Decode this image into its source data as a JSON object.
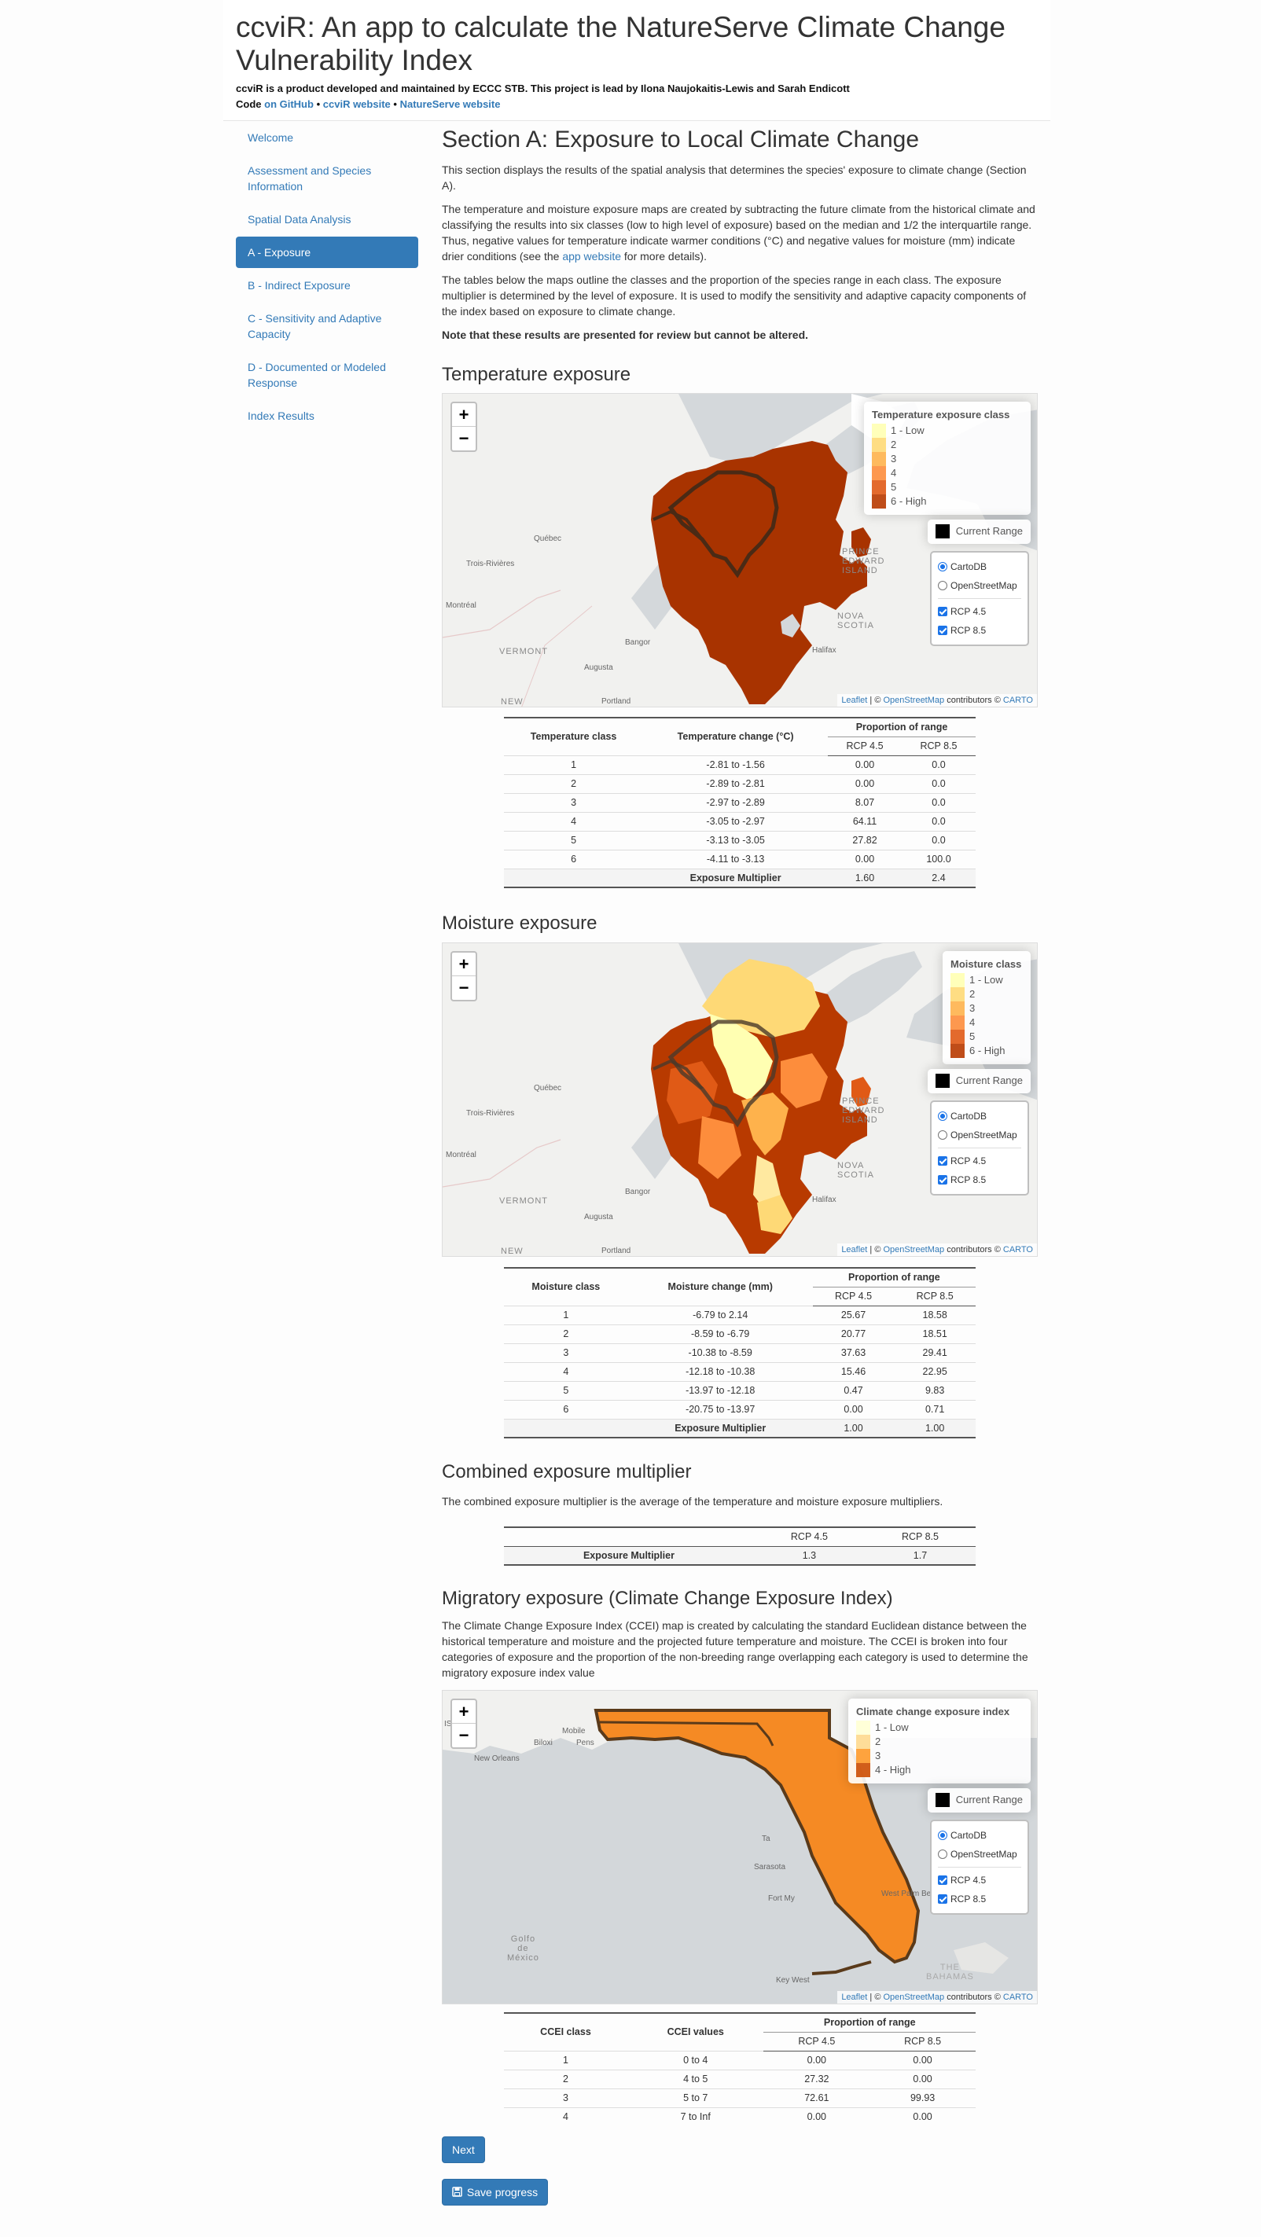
{
  "header": {
    "title_line1": "ccviR: An app to calculate the NatureServe Climate Change",
    "title_line2": "Vulnerability Index",
    "by_text": "ccviR is a product developed and maintained by ECCC STB. This project is lead by Ilona Naujokaitis-Lewis and Sarah Endicott",
    "code_prefix": "Code",
    "link_github": "on GitHub",
    "bullet": "•",
    "link_website": "ccviR website",
    "link_natureserve": "NatureServe website"
  },
  "sidebar": {
    "items": [
      {
        "label": "Welcome"
      },
      {
        "label": "Assessment and Species Information"
      },
      {
        "label": "Spatial Data Analysis"
      },
      {
        "label": "A - Exposure"
      },
      {
        "label": "B - Indirect Exposure"
      },
      {
        "label": "C - Sensitivity and Adaptive Capacity"
      },
      {
        "label": "D - Documented or Modeled Response"
      },
      {
        "label": "Index Results"
      }
    ]
  },
  "section": {
    "title": "Section A: Exposure to Local Climate Change",
    "p1": "This section displays the results of the spatial analysis that determines the species' exposure to climate change (Section A).",
    "p2_a": "The temperature and moisture exposure maps are created by subtracting the future climate from the historical climate and classifying the results into six classes (low to high level of exposure) based on the median and 1/2 the interquartile range. Thus, negative values for temperature indicate warmer conditions (°C) and negative values for moisture (mm) indicate drier conditions (see the ",
    "p2_link": "app website",
    "p2_b": " for more details).",
    "p3": "The tables below the maps outline the classes and the proportion of the species range in each class. The exposure multiplier is determined by the level of exposure. It is used to modify the sensitivity and adaptive capacity components of the index based on exposure to climate change.",
    "note": "Note that these results are presented for review but cannot be altered."
  },
  "map_common": {
    "zoom_in": "+",
    "zoom_out": "−",
    "current_range": "Current Range",
    "base_cartodb": "CartoDB",
    "base_osm": "OpenStreetMap",
    "rcp45": "RCP 4.5",
    "rcp85": "RCP 8.5",
    "attr_leaflet": "Leaflet",
    "attr_mid": " | © ",
    "attr_osm": "OpenStreetMap",
    "attr_contrib": " contributors © ",
    "attr_carto": "CARTO"
  },
  "ne_places": {
    "quebec": "Québec",
    "trois": "Trois-Rivières",
    "montreal": "Montréal",
    "vermont": "VERMONT",
    "augusta": "Augusta",
    "bangor": "Bangor",
    "portland": "Portland",
    "new": "NEW",
    "pei1": "PRINCE",
    "pei2": "EDWARD",
    "pei3": "ISLAND",
    "ns1": "NOVA",
    "ns2": "SCOTIA",
    "halifax": "Halifax"
  },
  "fl_places": {
    "mobile": "Mobile",
    "biloxi": "Biloxi",
    "pens": "Pens",
    "neworleans": "New Orleans",
    "is": "IS",
    "tampa": "Ta",
    "sarasota": "Sarasota",
    "fortmyers": "Fort My",
    "westpalm": "West Palm Be",
    "keywest": "Key West",
    "golfo1": "Golfo",
    "golfo2": "de",
    "golfo3": "México",
    "bahamas1": "THE",
    "bahamas2": "BAHAMAS"
  },
  "temperature": {
    "heading": "Temperature exposure",
    "legend_title": "Temperature exposure class",
    "legend": [
      {
        "label": "1 - Low",
        "color": "#ffffb2"
      },
      {
        "label": "2",
        "color": "#fed976"
      },
      {
        "label": "3",
        "color": "#feb24c"
      },
      {
        "label": "4",
        "color": "#fd8d3c"
      },
      {
        "label": "5",
        "color": "#e05a16"
      },
      {
        "label": "6 - High",
        "color": "#b83a00"
      }
    ],
    "table": {
      "col1": "Temperature class",
      "col2": "Temperature change (°C)",
      "prop": "Proportion of range",
      "rcp45": "RCP 4.5",
      "rcp85": "RCP 8.5",
      "rows": [
        {
          "c": "1",
          "range": "-2.81 to -1.56",
          "a": "0.00",
          "b": "0.0"
        },
        {
          "c": "2",
          "range": "-2.89 to -2.81",
          "a": "0.00",
          "b": "0.0"
        },
        {
          "c": "3",
          "range": "-2.97 to -2.89",
          "a": "8.07",
          "b": "0.0"
        },
        {
          "c": "4",
          "range": "-3.05 to -2.97",
          "a": "64.11",
          "b": "0.0"
        },
        {
          "c": "5",
          "range": "-3.13 to -3.05",
          "a": "27.82",
          "b": "0.0"
        },
        {
          "c": "6",
          "range": "-4.11 to -3.13",
          "a": "0.00",
          "b": "100.0"
        }
      ],
      "mult_label": "Exposure Multiplier",
      "mult_a": "1.60",
      "mult_b": "2.4"
    }
  },
  "moisture": {
    "heading": "Moisture exposure",
    "legend_title": "Moisture class",
    "legend": [
      {
        "label": "1 - Low",
        "color": "#ffffb2"
      },
      {
        "label": "2",
        "color": "#fed976"
      },
      {
        "label": "3",
        "color": "#feb24c"
      },
      {
        "label": "4",
        "color": "#fd8d3c"
      },
      {
        "label": "5",
        "color": "#e05a16"
      },
      {
        "label": "6 - High",
        "color": "#b83a00"
      }
    ],
    "table": {
      "col1": "Moisture class",
      "col2": "Moisture change (mm)",
      "prop": "Proportion of range",
      "rcp45": "RCP 4.5",
      "rcp85": "RCP 8.5",
      "rows": [
        {
          "c": "1",
          "range": "-6.79 to 2.14",
          "a": "25.67",
          "b": "18.58"
        },
        {
          "c": "2",
          "range": "-8.59 to -6.79",
          "a": "20.77",
          "b": "18.51"
        },
        {
          "c": "3",
          "range": "-10.38 to -8.59",
          "a": "37.63",
          "b": "29.41"
        },
        {
          "c": "4",
          "range": "-12.18 to -10.38",
          "a": "15.46",
          "b": "22.95"
        },
        {
          "c": "5",
          "range": "-13.97 to -12.18",
          "a": "0.47",
          "b": "9.83"
        },
        {
          "c": "6",
          "range": "-20.75 to -13.97",
          "a": "0.00",
          "b": "0.71"
        }
      ],
      "mult_label": "Exposure Multiplier",
      "mult_a": "1.00",
      "mult_b": "1.00"
    }
  },
  "combined": {
    "heading": "Combined exposure multiplier",
    "text": "The combined exposure multiplier is the average of the temperature and moisture exposure multipliers.",
    "rcp45": "RCP 4.5",
    "rcp85": "RCP 8.5",
    "label": "Exposure Multiplier",
    "a": "1.3",
    "b": "1.7"
  },
  "migratory": {
    "heading": "Migratory exposure (Climate Change Exposure Index)",
    "text": "The Climate Change Exposure Index (CCEI) map is created by calculating the standard Euclidean distance between the historical temperature and moisture and the projected future temperature and moisture. The CCEI is broken into four categories of exposure and the proportion of the non-breeding range overlapping each category is used to determine the migratory exposure index value",
    "legend_title": "Climate change exposure index",
    "legend": [
      {
        "label": "1 - Low",
        "color": "#ffffd4"
      },
      {
        "label": "2",
        "color": "#fed98e"
      },
      {
        "label": "3",
        "color": "#fe9929"
      },
      {
        "label": "4 - High",
        "color": "#cc4c02"
      }
    ],
    "table": {
      "col1": "CCEI class",
      "col2": "CCEI values",
      "prop": "Proportion of range",
      "rcp45": "RCP 4.5",
      "rcp85": "RCP 8.5",
      "rows": [
        {
          "c": "1",
          "range": "0 to 4",
          "a": "0.00",
          "b": "0.00"
        },
        {
          "c": "2",
          "range": "4 to 5",
          "a": "27.32",
          "b": "0.00"
        },
        {
          "c": "3",
          "range": "5 to 7",
          "a": "72.61",
          "b": "99.93"
        },
        {
          "c": "4",
          "range": "7 to Inf",
          "a": "0.00",
          "b": "0.00"
        }
      ]
    }
  },
  "buttons": {
    "next": "Next",
    "save_icon": "save-icon",
    "save": "Save progress"
  }
}
